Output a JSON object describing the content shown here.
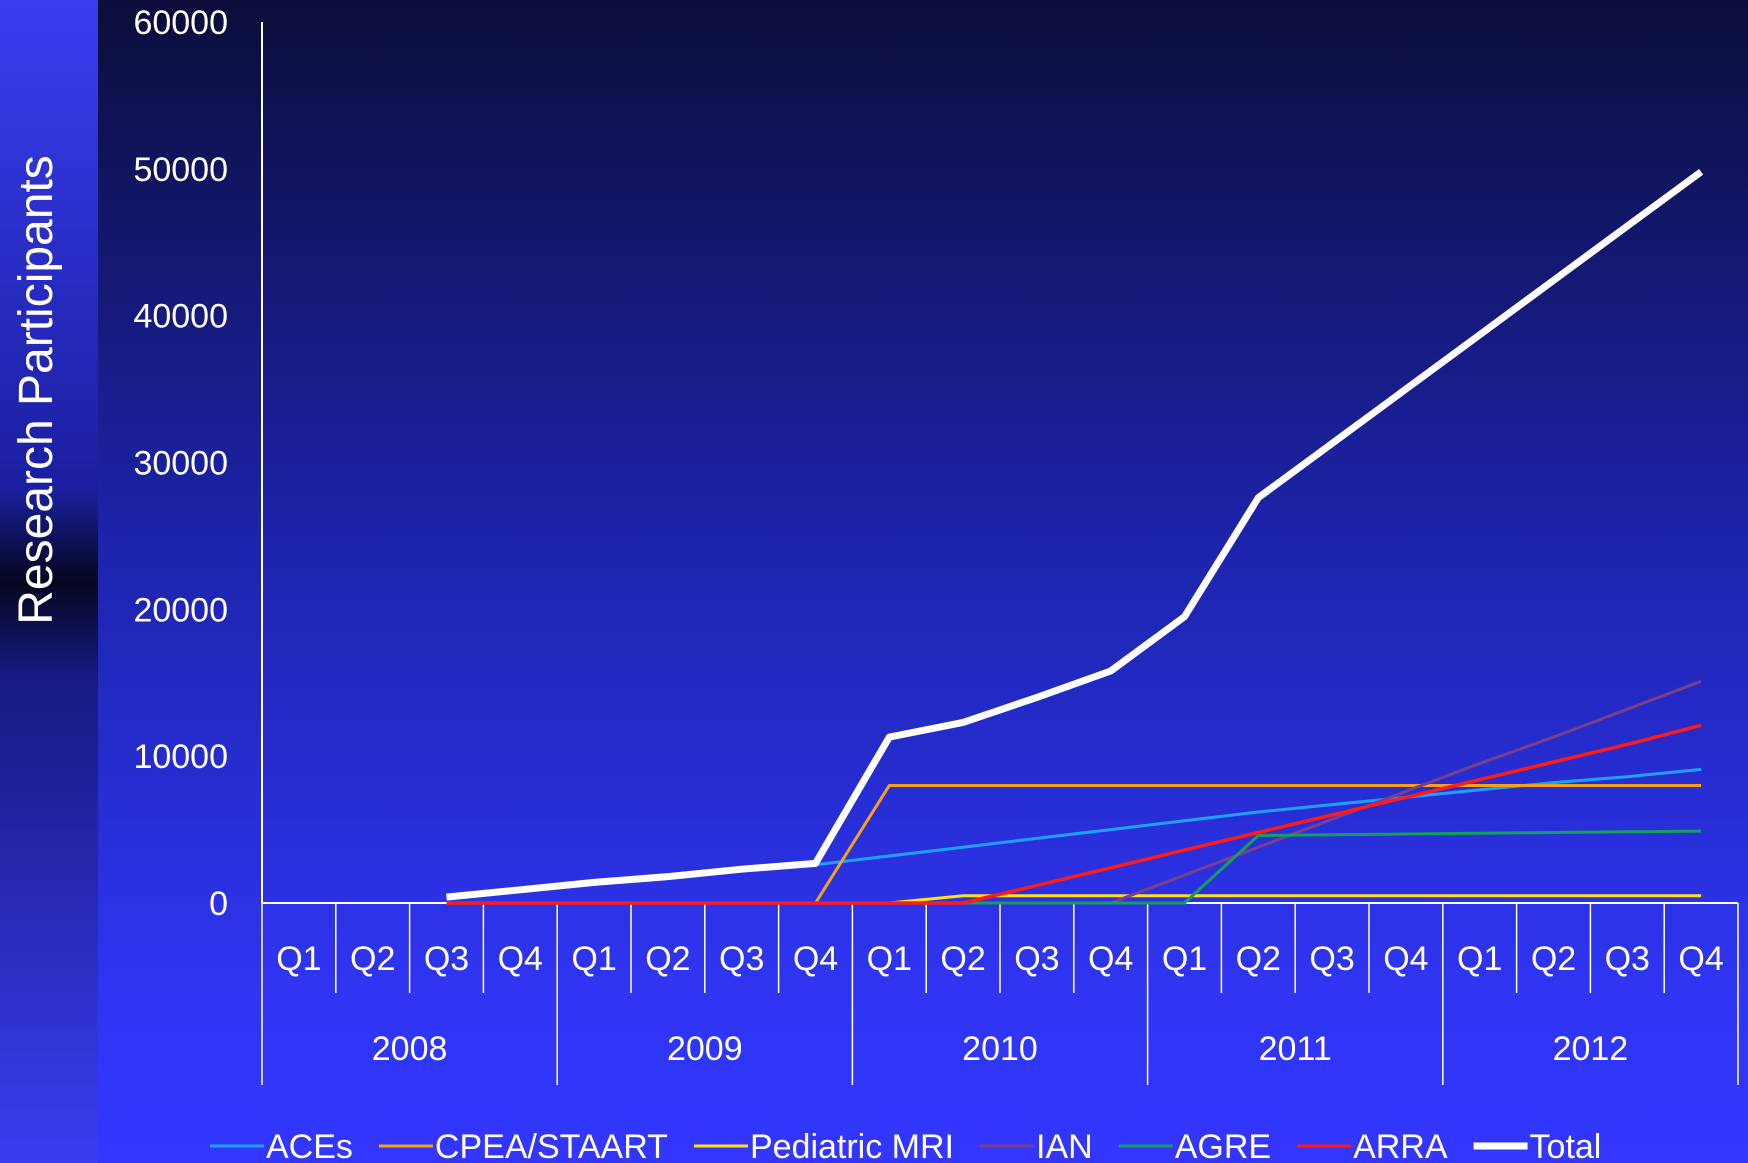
{
  "chart_data": {
    "type": "line",
    "ylabel": "Research Participants",
    "ylim": [
      0,
      60000
    ],
    "yticks": [
      "60000",
      "50000",
      "40000",
      "30000",
      "20000",
      "10000",
      "0"
    ],
    "categories": [
      "Q1",
      "Q2",
      "Q3",
      "Q4",
      "Q1",
      "Q2",
      "Q3",
      "Q4",
      "Q1",
      "Q2",
      "Q3",
      "Q4",
      "Q1",
      "Q2",
      "Q3",
      "Q4",
      "Q1",
      "Q2",
      "Q3",
      "Q4"
    ],
    "years": [
      "2008",
      "2009",
      "2010",
      "2011",
      "2012"
    ],
    "legend_position": "bottom",
    "series": [
      {
        "name": "ACEs",
        "color": "#1ea0ff",
        "width": 3,
        "values": [
          null,
          null,
          null,
          null,
          null,
          null,
          null,
          2600,
          3200,
          3800,
          4400,
          5000,
          5600,
          6200,
          6700,
          7200,
          7700,
          8200,
          8600,
          9100
        ]
      },
      {
        "name": "CPEA/STAART",
        "color": "#f5a21b",
        "width": 3,
        "values": [
          null,
          null,
          null,
          null,
          null,
          null,
          null,
          0,
          8000,
          8000,
          8000,
          8000,
          8000,
          8000,
          8000,
          8000,
          8000,
          8000,
          8000,
          8000
        ]
      },
      {
        "name": "Pediatric MRI",
        "color": "#ffe11a",
        "width": 3,
        "values": [
          null,
          null,
          null,
          null,
          null,
          null,
          null,
          null,
          0,
          500,
          500,
          500,
          500,
          500,
          500,
          500,
          500,
          500,
          500,
          500
        ]
      },
      {
        "name": "IAN",
        "color": "#7a3f8c",
        "width": 3,
        "values": [
          null,
          null,
          null,
          null,
          null,
          null,
          null,
          null,
          null,
          null,
          null,
          0,
          1900,
          3800,
          5700,
          7600,
          9500,
          11300,
          13200,
          15100
        ]
      },
      {
        "name": "AGRE",
        "color": "#13a05a",
        "width": 3,
        "values": [
          null,
          null,
          null,
          null,
          null,
          null,
          null,
          null,
          null,
          0,
          0,
          0,
          0,
          4600,
          4650,
          4700,
          4750,
          4800,
          4850,
          4900
        ]
      },
      {
        "name": "ARRA",
        "color": "#ff1a1a",
        "width": 3.5,
        "values": [
          null,
          null,
          0,
          0,
          0,
          0,
          0,
          0,
          0,
          0,
          1200,
          2400,
          3600,
          4800,
          6000,
          7200,
          8400,
          9600,
          10800,
          12100
        ]
      },
      {
        "name": "Total",
        "color": "#ffffff",
        "width": 7,
        "values": [
          null,
          null,
          400,
          900,
          1400,
          1800,
          2300,
          2700,
          11300,
          12300,
          14000,
          15800,
          19500,
          27600,
          31300,
          35000,
          38700,
          42400,
          46100,
          49800
        ]
      }
    ]
  }
}
